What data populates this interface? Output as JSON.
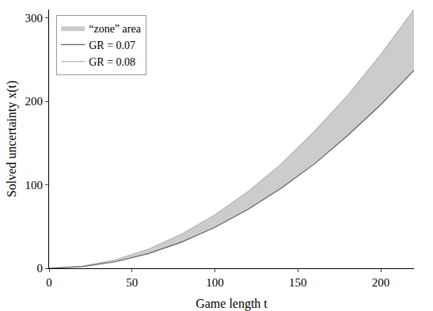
{
  "chart_data": {
    "type": "line",
    "x_label": "Game length t",
    "y_label": "Solved uncertainty x(t)",
    "x": [
      0,
      20,
      40,
      60,
      80,
      100,
      120,
      140,
      160,
      180,
      200,
      220
    ],
    "series": [
      {
        "name": "GR = 0.08",
        "color": "#b4b4b4",
        "type": "line",
        "values": [
          0,
          2.6,
          10.2,
          23,
          41,
          64,
          92,
          125,
          164,
          207,
          256,
          310
        ]
      },
      {
        "name": "GR = 0.07",
        "color": "#606060",
        "type": "line",
        "values": [
          0,
          2,
          7.8,
          17.6,
          31.4,
          49,
          70.6,
          96,
          125,
          159,
          196,
          237
        ]
      },
      {
        "name": "“zone” area",
        "color": "#cccccc",
        "type": "area"
      }
    ],
    "xlim": [
      0,
      220
    ],
    "xticks": [
      0,
      50,
      100,
      150,
      200
    ],
    "ylim": [
      0,
      310
    ],
    "yticks": [
      0,
      100,
      200,
      300
    ],
    "grid": false,
    "legend": "top-left"
  }
}
